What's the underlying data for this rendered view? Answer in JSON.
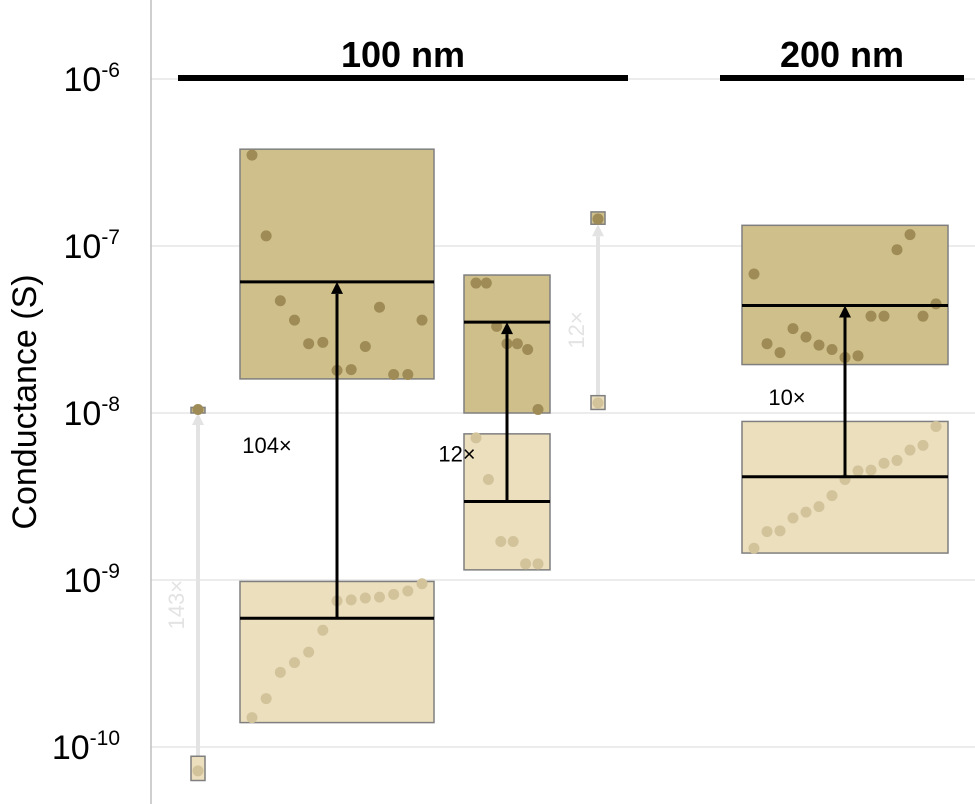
{
  "chart_data": {
    "type": "box",
    "ylabel": "Conductance (S)",
    "yscale": "log",
    "ylim": [
      6e-11,
      2e-06
    ],
    "yticks": [
      {
        "value": 1e-06,
        "base": "10",
        "exp": "-6"
      },
      {
        "value": 1e-07,
        "base": "10",
        "exp": "-7"
      },
      {
        "value": 1e-08,
        "base": "10",
        "exp": "-8"
      },
      {
        "value": 1e-09,
        "base": "10",
        "exp": "-9"
      },
      {
        "value": 1e-10,
        "base": "10",
        "exp": "-10"
      }
    ],
    "grid": true,
    "groups": [
      {
        "label": "100 nm",
        "x_range": [
          0,
          4
        ]
      },
      {
        "label": "200 nm",
        "x_range": [
          4.5,
          6
        ]
      }
    ],
    "series": [
      {
        "x": 0,
        "faded": false,
        "state": "high",
        "box": [
          1e-08,
          1.08e-08
        ],
        "median": null,
        "points": [
          1.05e-08
        ]
      },
      {
        "x": 0,
        "faded": false,
        "state": "low",
        "box": [
          6.3e-11,
          8.8e-11
        ],
        "median": null,
        "points": [
          7.2e-11
        ]
      },
      {
        "x": 1,
        "faded": false,
        "state": "high",
        "box": [
          1.6e-08,
          3.8e-07
        ],
        "median": 6.1e-08,
        "points": [
          3.5e-07,
          1.15e-07,
          4.7e-08,
          3.6e-08,
          2.6e-08,
          2.65e-08,
          1.8e-08,
          1.82e-08,
          2.5e-08,
          4.3e-08,
          1.7e-08,
          1.7e-08,
          3.6e-08
        ]
      },
      {
        "x": 1,
        "faded": false,
        "state": "low",
        "box": [
          1.4e-10,
          9.8e-10
        ],
        "median": 5.9e-10,
        "points": [
          1.5e-10,
          1.95e-10,
          2.8e-10,
          3.2e-10,
          3.7e-10,
          5e-10,
          7.5e-10,
          7.6e-10,
          7.8e-10,
          7.9e-10,
          8.2e-10,
          8.6e-10,
          9.5e-10
        ]
      },
      {
        "x": 2,
        "faded": false,
        "state": "high",
        "box": [
          1e-08,
          6.7e-08
        ],
        "median": 3.5e-08,
        "points": [
          6e-08,
          6e-08,
          3.3e-08,
          2.6e-08,
          2.6e-08,
          2.4e-08,
          1.05e-08
        ]
      },
      {
        "x": 2,
        "faded": false,
        "state": "low",
        "box": [
          1.15e-09,
          7.5e-09
        ],
        "median": 2.95e-09,
        "points": [
          7.1e-09,
          4e-09,
          1.7e-09,
          1.7e-09,
          1.25e-09,
          1.25e-09
        ]
      },
      {
        "x": 3,
        "faded": false,
        "state": "high",
        "box": [
          1.35e-07,
          1.6e-07
        ],
        "median": null,
        "points": [
          1.45e-07
        ]
      },
      {
        "x": 3,
        "faded": false,
        "state": "low",
        "box": [
          1.05e-08,
          1.27e-08
        ],
        "median": null,
        "points": [
          1.15e-08
        ]
      },
      {
        "x": 5,
        "faded": false,
        "state": "high",
        "box": [
          1.95e-08,
          1.33e-07
        ],
        "median": 4.4e-08,
        "points": [
          6.8e-08,
          2.6e-08,
          2.3e-08,
          3.2e-08,
          2.85e-08,
          2.55e-08,
          2.4e-08,
          2.15e-08,
          2.2e-08,
          3.8e-08,
          3.8e-08,
          9.5e-08,
          1.17e-07,
          3.8e-08,
          4.5e-08
        ]
      },
      {
        "x": 5,
        "faded": false,
        "state": "low",
        "box": [
          1.45e-09,
          8.9e-09
        ],
        "median": 4.15e-09,
        "points": [
          1.55e-09,
          1.95e-09,
          1.97e-09,
          2.35e-09,
          2.55e-09,
          2.75e-09,
          3.2e-09,
          4e-09,
          4.5e-09,
          4.55e-09,
          5e-09,
          5.2e-09,
          6e-09,
          6.4e-09,
          8.3e-09
        ]
      }
    ],
    "annotations": [
      {
        "text": "104×",
        "x": 1,
        "from": 5.9e-10,
        "to": 6.1e-08,
        "faded": false
      },
      {
        "text": "12×",
        "x": 2,
        "from": 2.95e-09,
        "to": 3.5e-08,
        "faded": false
      },
      {
        "text": "10×",
        "x": 5,
        "from": 4.15e-09,
        "to": 4.4e-08,
        "faded": false
      },
      {
        "text": "143×",
        "x": 0,
        "from": 8.8e-11,
        "to": 1e-08,
        "faded": true
      },
      {
        "text": "12×",
        "x": 3,
        "from": 1.27e-08,
        "to": 1.35e-07,
        "faded": true
      }
    ],
    "colors": {
      "high_fill": "#cfbf8a",
      "low_fill": "#ecdfbd",
      "high_dot": "#9e8b56",
      "low_dot": "#d2c39b",
      "box_edge": "#7f7f7f",
      "median": "#000000",
      "grid": "#d9d9d9",
      "faded_arrow": "#e3e3e3"
    }
  }
}
